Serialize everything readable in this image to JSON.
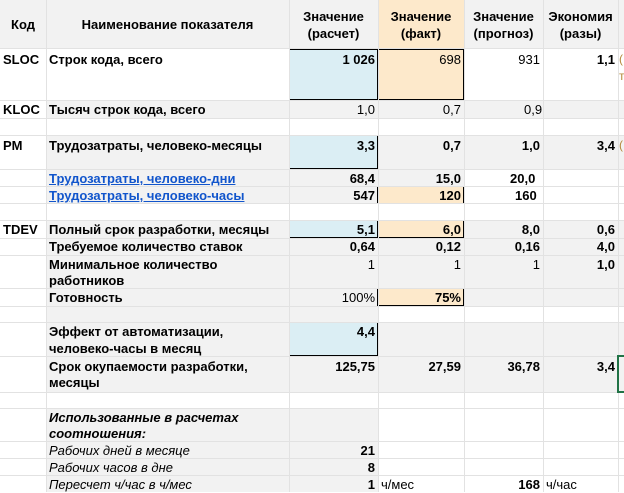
{
  "header": {
    "code": "Код",
    "name": "Наименование показателя",
    "calc": [
      "Значение",
      "(расчет)"
    ],
    "fact": [
      "Значение",
      "(факт)"
    ],
    "forecast": [
      "Значение",
      "(прогноз)"
    ],
    "economy": [
      "Экономия",
      "(разы)"
    ]
  },
  "rows": {
    "sloc": {
      "code": "SLOC",
      "name": "Строк кода, всего",
      "calc": "1 026",
      "fact": "698",
      "forecast": "931",
      "economy": "1,1"
    },
    "kloc": {
      "code": "KLOC",
      "name": "Тысяч строк кода, всего",
      "calc": "1,0",
      "fact": "0,7",
      "forecast": "0,9"
    },
    "pm": {
      "code": "PM",
      "name": "Трудозатраты, человеко-месяцы",
      "calc": "3,3",
      "fact": "0,7",
      "forecast": "1,0",
      "economy": "3,4"
    },
    "pm_days": {
      "name": "Трудозатраты, человеко-дни",
      "calc": "68,4",
      "fact": "15,0",
      "forecast": "20,0"
    },
    "pm_hours": {
      "name": "Трудозатраты, человеко-часы",
      "calc": "547",
      "fact": "120",
      "forecast": "160"
    },
    "tdev": {
      "code": "TDEV",
      "name": "Полный срок разработки, месяцы",
      "calc": "5,1",
      "fact": "6,0",
      "forecast": "8,0",
      "economy": "0,6"
    },
    "rates": {
      "name": "Требуемое количество ставок",
      "calc": "0,64",
      "fact": "0,12",
      "forecast": "0,16",
      "economy": "4,0"
    },
    "min_workers": {
      "name": [
        "Минимальное количество",
        "работников"
      ],
      "calc": "1",
      "fact": "1",
      "forecast": "1",
      "economy": "1,0"
    },
    "ready": {
      "name": "Готовность",
      "calc": "100%",
      "fact": "75%"
    },
    "effect": {
      "name": [
        "Эффект от автоматизации,",
        "человеко-часы в месяц"
      ],
      "calc": "4,4"
    },
    "payback": {
      "name": [
        "Срок окупаемости разработки,",
        "месяцы"
      ],
      "calc": "125,75",
      "fact": "27,59",
      "forecast": "36,78",
      "economy": "3,4"
    }
  },
  "notes": {
    "title": [
      "Использованные в расчетах",
      "соотношения:"
    ],
    "work_days": {
      "label": "Рабочих дней в месяце",
      "value": "21"
    },
    "work_hours": {
      "label": "Рабочих часов в дне",
      "value": "8"
    },
    "conversion": {
      "label": "Пересчет ч/час в ч/мес",
      "value": "1",
      "unit1": "ч/мес",
      "value2": "168",
      "unit2": "ч/час"
    }
  },
  "overflow_marks": [
    "(",
    "т",
    "("
  ]
}
